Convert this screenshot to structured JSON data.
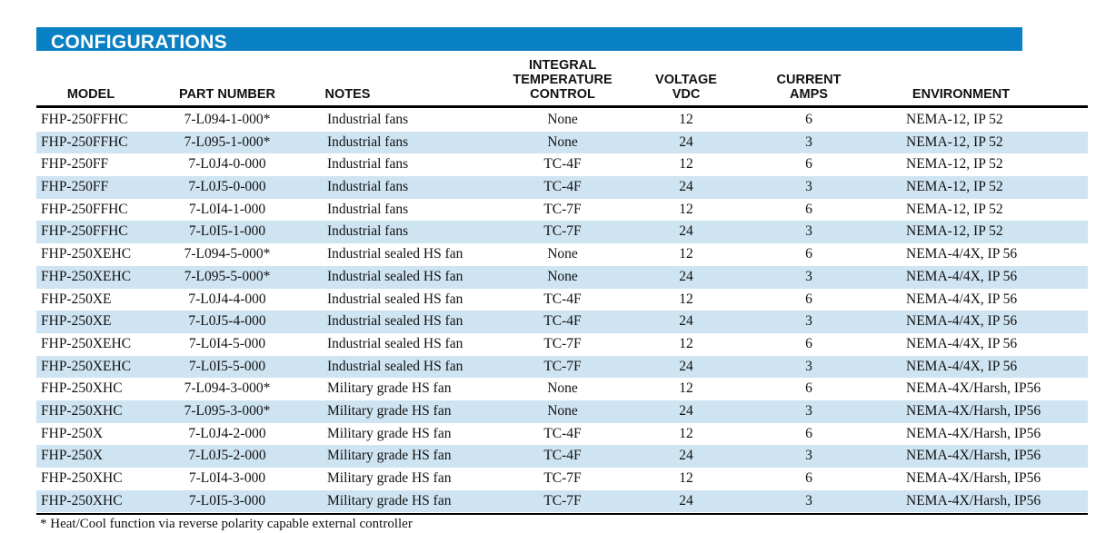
{
  "section_title": "CONFIGURATIONS",
  "columns": {
    "model": "MODEL",
    "part_number": "PART NUMBER",
    "notes": "NOTES",
    "temp_control": "INTEGRAL\nTEMPERATURE\nCONTROL",
    "voltage": "VOLTAGE\nVDC",
    "current": "CURRENT\nAMPS",
    "environment": "ENVIRONMENT"
  },
  "rows": [
    {
      "model": "FHP-250FFHC",
      "part": "7-L094-1-000*",
      "notes": "Industrial fans",
      "tc": "None",
      "volt": "12",
      "amp": "6",
      "env": "NEMA-12, IP 52"
    },
    {
      "model": "FHP-250FFHC",
      "part": "7-L095-1-000*",
      "notes": "Industrial fans",
      "tc": "None",
      "volt": "24",
      "amp": "3",
      "env": "NEMA-12, IP 52"
    },
    {
      "model": "FHP-250FF",
      "part": "7-L0J4-0-000",
      "notes": "Industrial fans",
      "tc": "TC-4F",
      "volt": "12",
      "amp": "6",
      "env": "NEMA-12, IP 52"
    },
    {
      "model": "FHP-250FF",
      "part": "7-L0J5-0-000",
      "notes": "Industrial fans",
      "tc": "TC-4F",
      "volt": "24",
      "amp": "3",
      "env": "NEMA-12, IP 52"
    },
    {
      "model": "FHP-250FFHC",
      "part": "7-L0I4-1-000",
      "notes": "Industrial fans",
      "tc": "TC-7F",
      "volt": "12",
      "amp": "6",
      "env": "NEMA-12, IP 52"
    },
    {
      "model": "FHP-250FFHC",
      "part": "7-L0I5-1-000",
      "notes": "Industrial fans",
      "tc": "TC-7F",
      "volt": "24",
      "amp": "3",
      "env": "NEMA-12, IP 52"
    },
    {
      "model": "FHP-250XEHC",
      "part": "7-L094-5-000*",
      "notes": "Industrial sealed HS fan",
      "tc": "None",
      "volt": "12",
      "amp": "6",
      "env": "NEMA-4/4X, IP 56"
    },
    {
      "model": "FHP-250XEHC",
      "part": "7-L095-5-000*",
      "notes": "Industrial sealed HS fan",
      "tc": "None",
      "volt": "24",
      "amp": "3",
      "env": "NEMA-4/4X, IP 56"
    },
    {
      "model": "FHP-250XE",
      "part": "7-L0J4-4-000",
      "notes": "Industrial sealed HS fan",
      "tc": "TC-4F",
      "volt": "12",
      "amp": "6",
      "env": "NEMA-4/4X, IP 56"
    },
    {
      "model": "FHP-250XE",
      "part": "7-L0J5-4-000",
      "notes": "Industrial sealed HS fan",
      "tc": "TC-4F",
      "volt": "24",
      "amp": "3",
      "env": "NEMA-4/4X, IP 56"
    },
    {
      "model": "FHP-250XEHC",
      "part": "7-L0I4-5-000",
      "notes": "Industrial sealed HS fan",
      "tc": "TC-7F",
      "volt": "12",
      "amp": "6",
      "env": "NEMA-4/4X, IP 56"
    },
    {
      "model": "FHP-250XEHC",
      "part": "7-L0I5-5-000",
      "notes": "Industrial sealed HS fan",
      "tc": "TC-7F",
      "volt": "24",
      "amp": "3",
      "env": "NEMA-4/4X, IP 56"
    },
    {
      "model": "FHP-250XHC",
      "part": "7-L094-3-000*",
      "notes": "Military grade HS fan",
      "tc": "None",
      "volt": "12",
      "amp": "6",
      "env": "NEMA-4X/Harsh, IP56"
    },
    {
      "model": "FHP-250XHC",
      "part": "7-L095-3-000*",
      "notes": "Military grade HS fan",
      "tc": "None",
      "volt": "24",
      "amp": "3",
      "env": "NEMA-4X/Harsh, IP56"
    },
    {
      "model": "FHP-250X",
      "part": "7-L0J4-2-000",
      "notes": "Military grade HS fan",
      "tc": "TC-4F",
      "volt": "12",
      "amp": "6",
      "env": "NEMA-4X/Harsh, IP56"
    },
    {
      "model": "FHP-250X",
      "part": "7-L0J5-2-000",
      "notes": "Military grade HS fan",
      "tc": "TC-4F",
      "volt": "24",
      "amp": "3",
      "env": "NEMA-4X/Harsh, IP56"
    },
    {
      "model": "FHP-250XHC",
      "part": "7-L0I4-3-000",
      "notes": "Military grade HS fan",
      "tc": "TC-7F",
      "volt": "12",
      "amp": "6",
      "env": "NEMA-4X/Harsh, IP56"
    },
    {
      "model": "FHP-250XHC",
      "part": "7-L0I5-3-000",
      "notes": "Military grade HS fan",
      "tc": "TC-7F",
      "volt": "24",
      "amp": "3",
      "env": "NEMA-4X/Harsh, IP56"
    }
  ],
  "footnote": "* Heat/Cool function via reverse polarity capable external controller",
  "colors": {
    "banner": "#0a80c4",
    "row_alt": "#cfe4f2"
  }
}
